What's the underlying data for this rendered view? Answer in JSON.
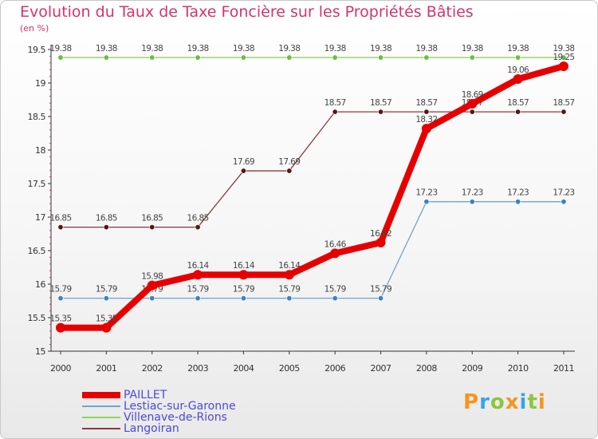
{
  "title": "Evolution du Taux de Taxe Foncière sur les Propriétés Bâties",
  "unit_label": "(en %)",
  "brand": {
    "text": "Proxiti",
    "letters": [
      "P",
      "r",
      "o",
      "x",
      "i",
      "t",
      "i"
    ],
    "letter_colors": [
      "#f7941d",
      "#3aa3e3",
      "#8cc63f",
      "#f7941d",
      "#3aa3e3",
      "#8cc63f",
      "#f7941d"
    ]
  },
  "chart_data": {
    "type": "line",
    "title": "Evolution du Taux de Taxe Foncière sur les Propriétés Bâties",
    "ylabel": "(en %)",
    "xlabel": "",
    "x": [
      "2000",
      "2001",
      "2002",
      "2003",
      "2004",
      "2005",
      "2006",
      "2007",
      "2008",
      "2009",
      "2010",
      "2011"
    ],
    "ylim": [
      15,
      19.5
    ],
    "yticks": [
      15,
      15.5,
      16,
      16.5,
      17,
      17.5,
      18,
      18.5,
      19,
      19.5
    ],
    "ytick_labels": [
      "15",
      "15.5",
      "16",
      "16.5",
      "17",
      "17.5",
      "18",
      "18.5",
      "19",
      "19.5"
    ],
    "grid": false,
    "legend_position": "bottom-left",
    "series": [
      {
        "name": "PAILLET",
        "color": "#e60000",
        "emphasis": true,
        "values": [
          15.35,
          15.35,
          15.98,
          16.14,
          16.14,
          16.14,
          16.46,
          16.62,
          18.32,
          18.69,
          19.06,
          19.25
        ],
        "labels": [
          "15.35",
          "15.35",
          "15.98",
          "16.14",
          "16.14",
          "16.14",
          "16.46",
          "16.62",
          "18.32",
          "18.69",
          "19.06",
          "19.25"
        ]
      },
      {
        "name": "Lestiac-sur-Garonne",
        "color": "#6fa3cf",
        "point_color": "#3b82c4",
        "emphasis": false,
        "values": [
          15.79,
          15.79,
          15.79,
          15.79,
          15.79,
          15.79,
          15.79,
          15.79,
          17.23,
          17.23,
          17.23,
          17.23
        ],
        "labels": [
          "15.79",
          "15.79",
          "15.79",
          "15.79",
          "15.79",
          "15.79",
          "15.79",
          "15.79",
          "17.23",
          "17.23",
          "17.23",
          "17.23"
        ]
      },
      {
        "name": "Villenave-de-Rions",
        "color": "#8fd45a",
        "point_color": "#6bbf3a",
        "emphasis": false,
        "values": [
          19.38,
          19.38,
          19.38,
          19.38,
          19.38,
          19.38,
          19.38,
          19.38,
          19.38,
          19.38,
          19.38,
          19.38
        ],
        "labels": [
          "19.38",
          "19.38",
          "19.38",
          "19.38",
          "19.38",
          "19.38",
          "19.38",
          "19.38",
          "19.38",
          "19.38",
          "19.38",
          "19.38"
        ]
      },
      {
        "name": "Langoiran",
        "color": "#8b3a3a",
        "point_color": "#5a1414",
        "emphasis": false,
        "values": [
          16.85,
          16.85,
          16.85,
          16.85,
          17.69,
          17.69,
          18.57,
          18.57,
          18.57,
          18.57,
          18.57,
          18.57
        ],
        "labels": [
          "16.85",
          "16.85",
          "16.85",
          "16.85",
          "17.69",
          "17.69",
          "18.57",
          "18.57",
          "18.57",
          "18.57",
          "18.57",
          "18.57"
        ]
      }
    ]
  }
}
